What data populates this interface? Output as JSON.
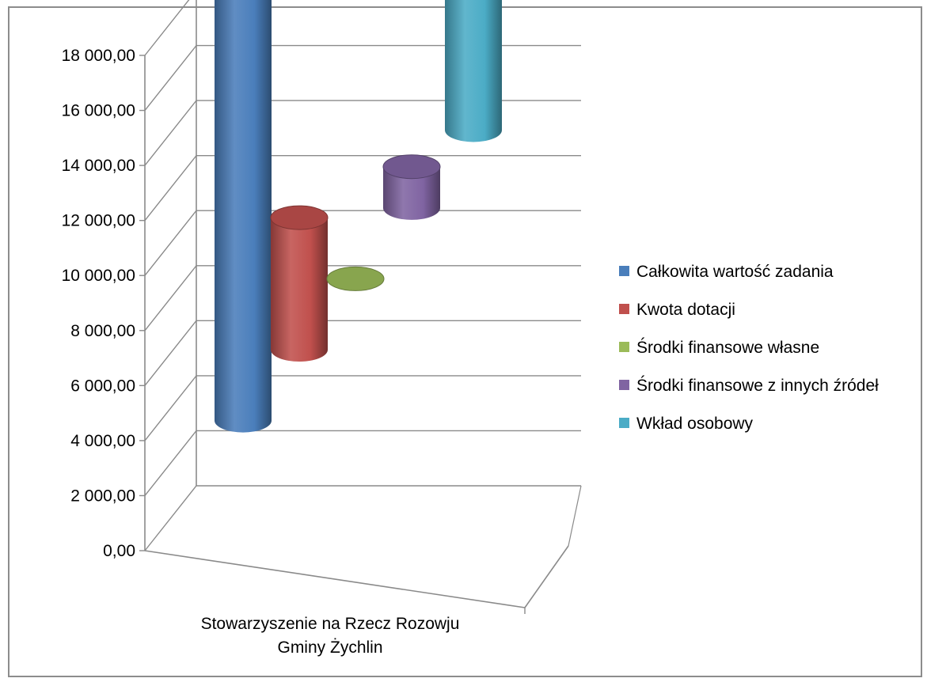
{
  "chart_data": {
    "type": "bar",
    "style": "3d-cylinder",
    "categories": [
      "Stowarzyszenie na Rzecz Rozowju Gminy Żychlin"
    ],
    "category_label_lines": [
      "Stowarzyszenie na Rzecz Rozowju",
      "Gminy Żychlin"
    ],
    "series": [
      {
        "name": "Całkowita wartość zadania",
        "values": [
          17300
        ],
        "color": "#4a7ebb"
      },
      {
        "name": "Kwota dotacji",
        "values": [
          4800
        ],
        "color": "#c0504d"
      },
      {
        "name": "Środki finansowe własne",
        "values": [
          0
        ],
        "color": "#9bbb59"
      },
      {
        "name": "Środki finansowe z innych źródeł",
        "values": [
          1500
        ],
        "color": "#8064a2"
      },
      {
        "name": "Wkład osobowy",
        "values": [
          11000
        ],
        "color": "#4bacc6"
      }
    ],
    "ylim": [
      0,
      18000
    ],
    "y_ticks": [
      "0,00",
      "2 000,00",
      "4 000,00",
      "6 000,00",
      "8 000,00",
      "10 000,00",
      "12 000,00",
      "14 000,00",
      "16 000,00",
      "18 000,00"
    ],
    "grid": true,
    "legend_position": "right",
    "title": "",
    "xlabel": "",
    "ylabel": ""
  }
}
